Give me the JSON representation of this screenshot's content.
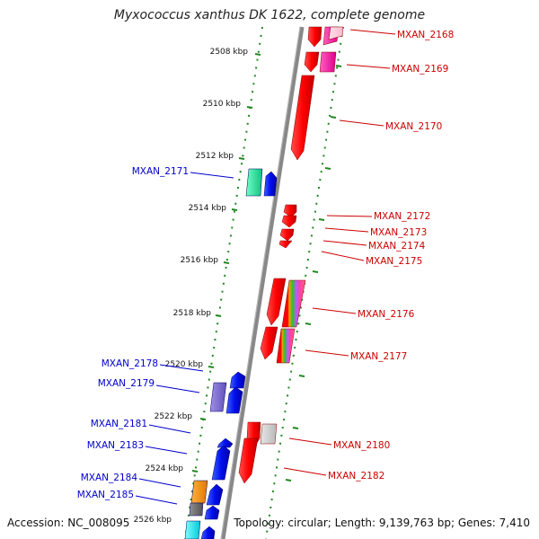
{
  "title": "Myxococcus xanthus DK 1622, complete genome",
  "accession": "Accession: NC_008095",
  "summary": "Topology: circular; Length: 9,139,763 bp; Genes: 7,410",
  "colors": {
    "plus_label": "#cc0000",
    "minus_label": "#0000cc",
    "axis": "#888888",
    "tick": "#228822"
  },
  "scale_labels": [
    "2508 kbp",
    "2510 kbp",
    "2512 kbp",
    "2514 kbp",
    "2516 kbp",
    "2518 kbp",
    "2520 kbp",
    "2522 kbp",
    "2524 kbp",
    "2526 kbp"
  ],
  "genes_plus": [
    "MXAN_2168",
    "MXAN_2169",
    "MXAN_2170",
    "MXAN_2172",
    "MXAN_2173",
    "MXAN_2174",
    "MXAN_2175",
    "MXAN_2176",
    "MXAN_2177",
    "MXAN_2180",
    "MXAN_2182"
  ],
  "genes_minus": [
    "MXAN_2171",
    "MXAN_2178",
    "MXAN_2179",
    "MXAN_2181",
    "MXAN_2183",
    "MXAN_2184",
    "MXAN_2185"
  ]
}
